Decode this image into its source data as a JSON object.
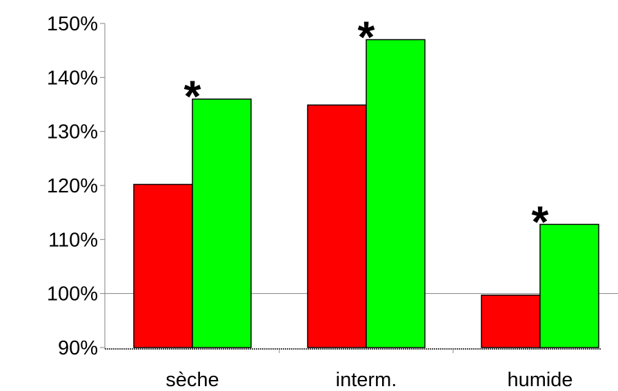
{
  "chart_data": {
    "type": "bar",
    "categories": [
      "sèche",
      "interm.",
      "humide"
    ],
    "series": [
      {
        "color": "#ff0000",
        "values": [
          120.2,
          134.9,
          99.7
        ]
      },
      {
        "color": "#00ff00",
        "values": [
          136.0,
          147.0,
          112.8
        ]
      }
    ],
    "annotations": [
      {
        "category": "sèche",
        "text": "*"
      },
      {
        "category": "interm.",
        "text": "*"
      },
      {
        "category": "humide",
        "text": "*"
      }
    ],
    "title": "",
    "xlabel": "",
    "ylabel": "",
    "ylim": [
      90,
      150
    ],
    "yticks": [
      90,
      100,
      110,
      120,
      130,
      140,
      150
    ],
    "ytick_labels": [
      "90%",
      "100%",
      "110%",
      "120%",
      "130%",
      "140%",
      "150%"
    ],
    "reference_line": 100,
    "grid": false,
    "legend": "none"
  }
}
